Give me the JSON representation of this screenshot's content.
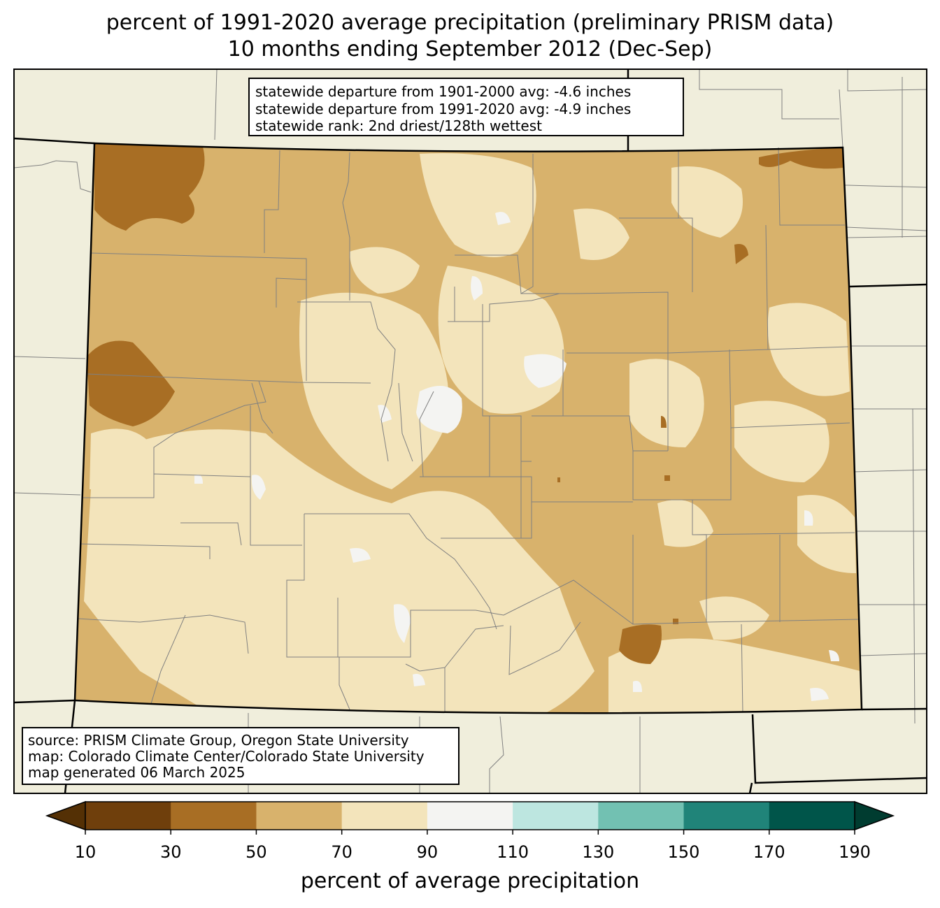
{
  "title": {
    "line1": "percent of 1991-2020 average precipitation (preliminary PRISM data)",
    "line2": "10 months ending September 2012 (Dec-Sep)"
  },
  "stats": {
    "line1": "statewide departure from 1901-2000 avg: -4.6 inches",
    "line2": "statewide departure from 1991-2020 avg: -4.9 inches",
    "line3": "statewide rank: 2nd driest/128th wettest"
  },
  "source": {
    "line1": "source: PRISM Climate Group, Oregon State University",
    "line2": "map: Colorado Climate Center/Colorado State University",
    "line3": "map generated 06 March 2025"
  },
  "colorbar": {
    "label": "percent of average precipitation",
    "ticks": [
      "10",
      "30",
      "50",
      "70",
      "90",
      "110",
      "130",
      "150",
      "170",
      "190"
    ],
    "under_color": "#543005",
    "over_color": "#003c30",
    "bins": [
      {
        "range": "10-30",
        "color": "#6f3f0c"
      },
      {
        "range": "30-50",
        "color": "#a86e24"
      },
      {
        "range": "50-70",
        "color": "#d8b26c"
      },
      {
        "range": "70-90",
        "color": "#f3e4bb"
      },
      {
        "range": "90-110",
        "color": "#f4f4f2"
      },
      {
        "range": "110-130",
        "color": "#bde6e0"
      },
      {
        "range": "130-150",
        "color": "#72c1b2"
      },
      {
        "range": "150-170",
        "color": "#208479"
      },
      {
        "range": "170-190",
        "color": "#00554a"
      }
    ]
  },
  "colors": {
    "background_land": "#f0eedc",
    "state_border": "#000000",
    "county_border": "#808080"
  }
}
